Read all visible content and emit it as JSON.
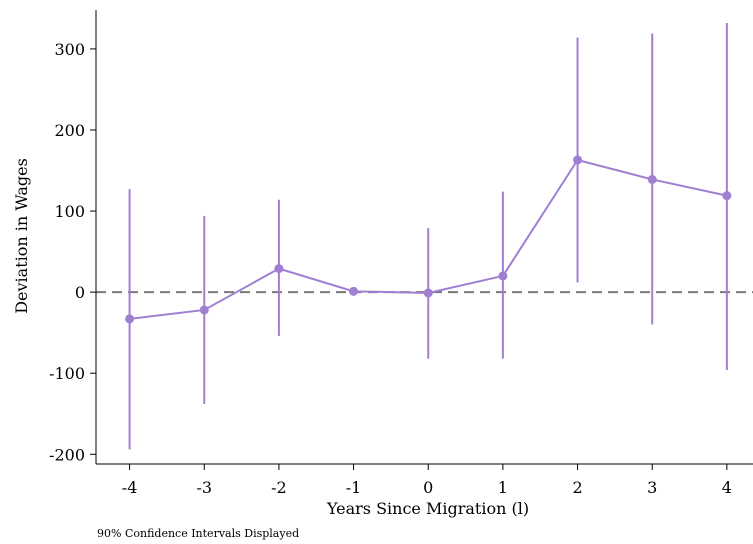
{
  "chart_data": {
    "type": "line",
    "xlabel": "Years Since Migration (l)",
    "ylabel": "Deviation in Wages",
    "note": "90% Confidence Intervals Displayed",
    "x": [
      -4,
      -3,
      -2,
      -1,
      0,
      1,
      2,
      3,
      4
    ],
    "x_ticks": [
      "-4",
      "-3",
      "-2",
      "-1",
      "0",
      "1",
      "2",
      "3",
      "4"
    ],
    "y_ticks": [
      "300",
      "200",
      "100",
      "0",
      "-100",
      "-200"
    ],
    "y_tick_values": [
      300,
      200,
      100,
      0,
      -100,
      -200
    ],
    "ylim": [
      -212,
      348
    ],
    "xlim": [
      -4.45,
      4.35
    ],
    "reference_line": {
      "y": 0,
      "style": "dashed",
      "color": "#777777"
    },
    "series": [
      {
        "values": [
          -33,
          -22,
          29,
          1,
          -1,
          20,
          163,
          139,
          119
        ],
        "ci_low": [
          -194,
          -138,
          -54,
          -2,
          -82,
          -82,
          12,
          -40,
          -96
        ],
        "ci_high": [
          127,
          94,
          114,
          4,
          79,
          124,
          314,
          319,
          332
        ],
        "color": "#a07fd2"
      }
    ]
  }
}
